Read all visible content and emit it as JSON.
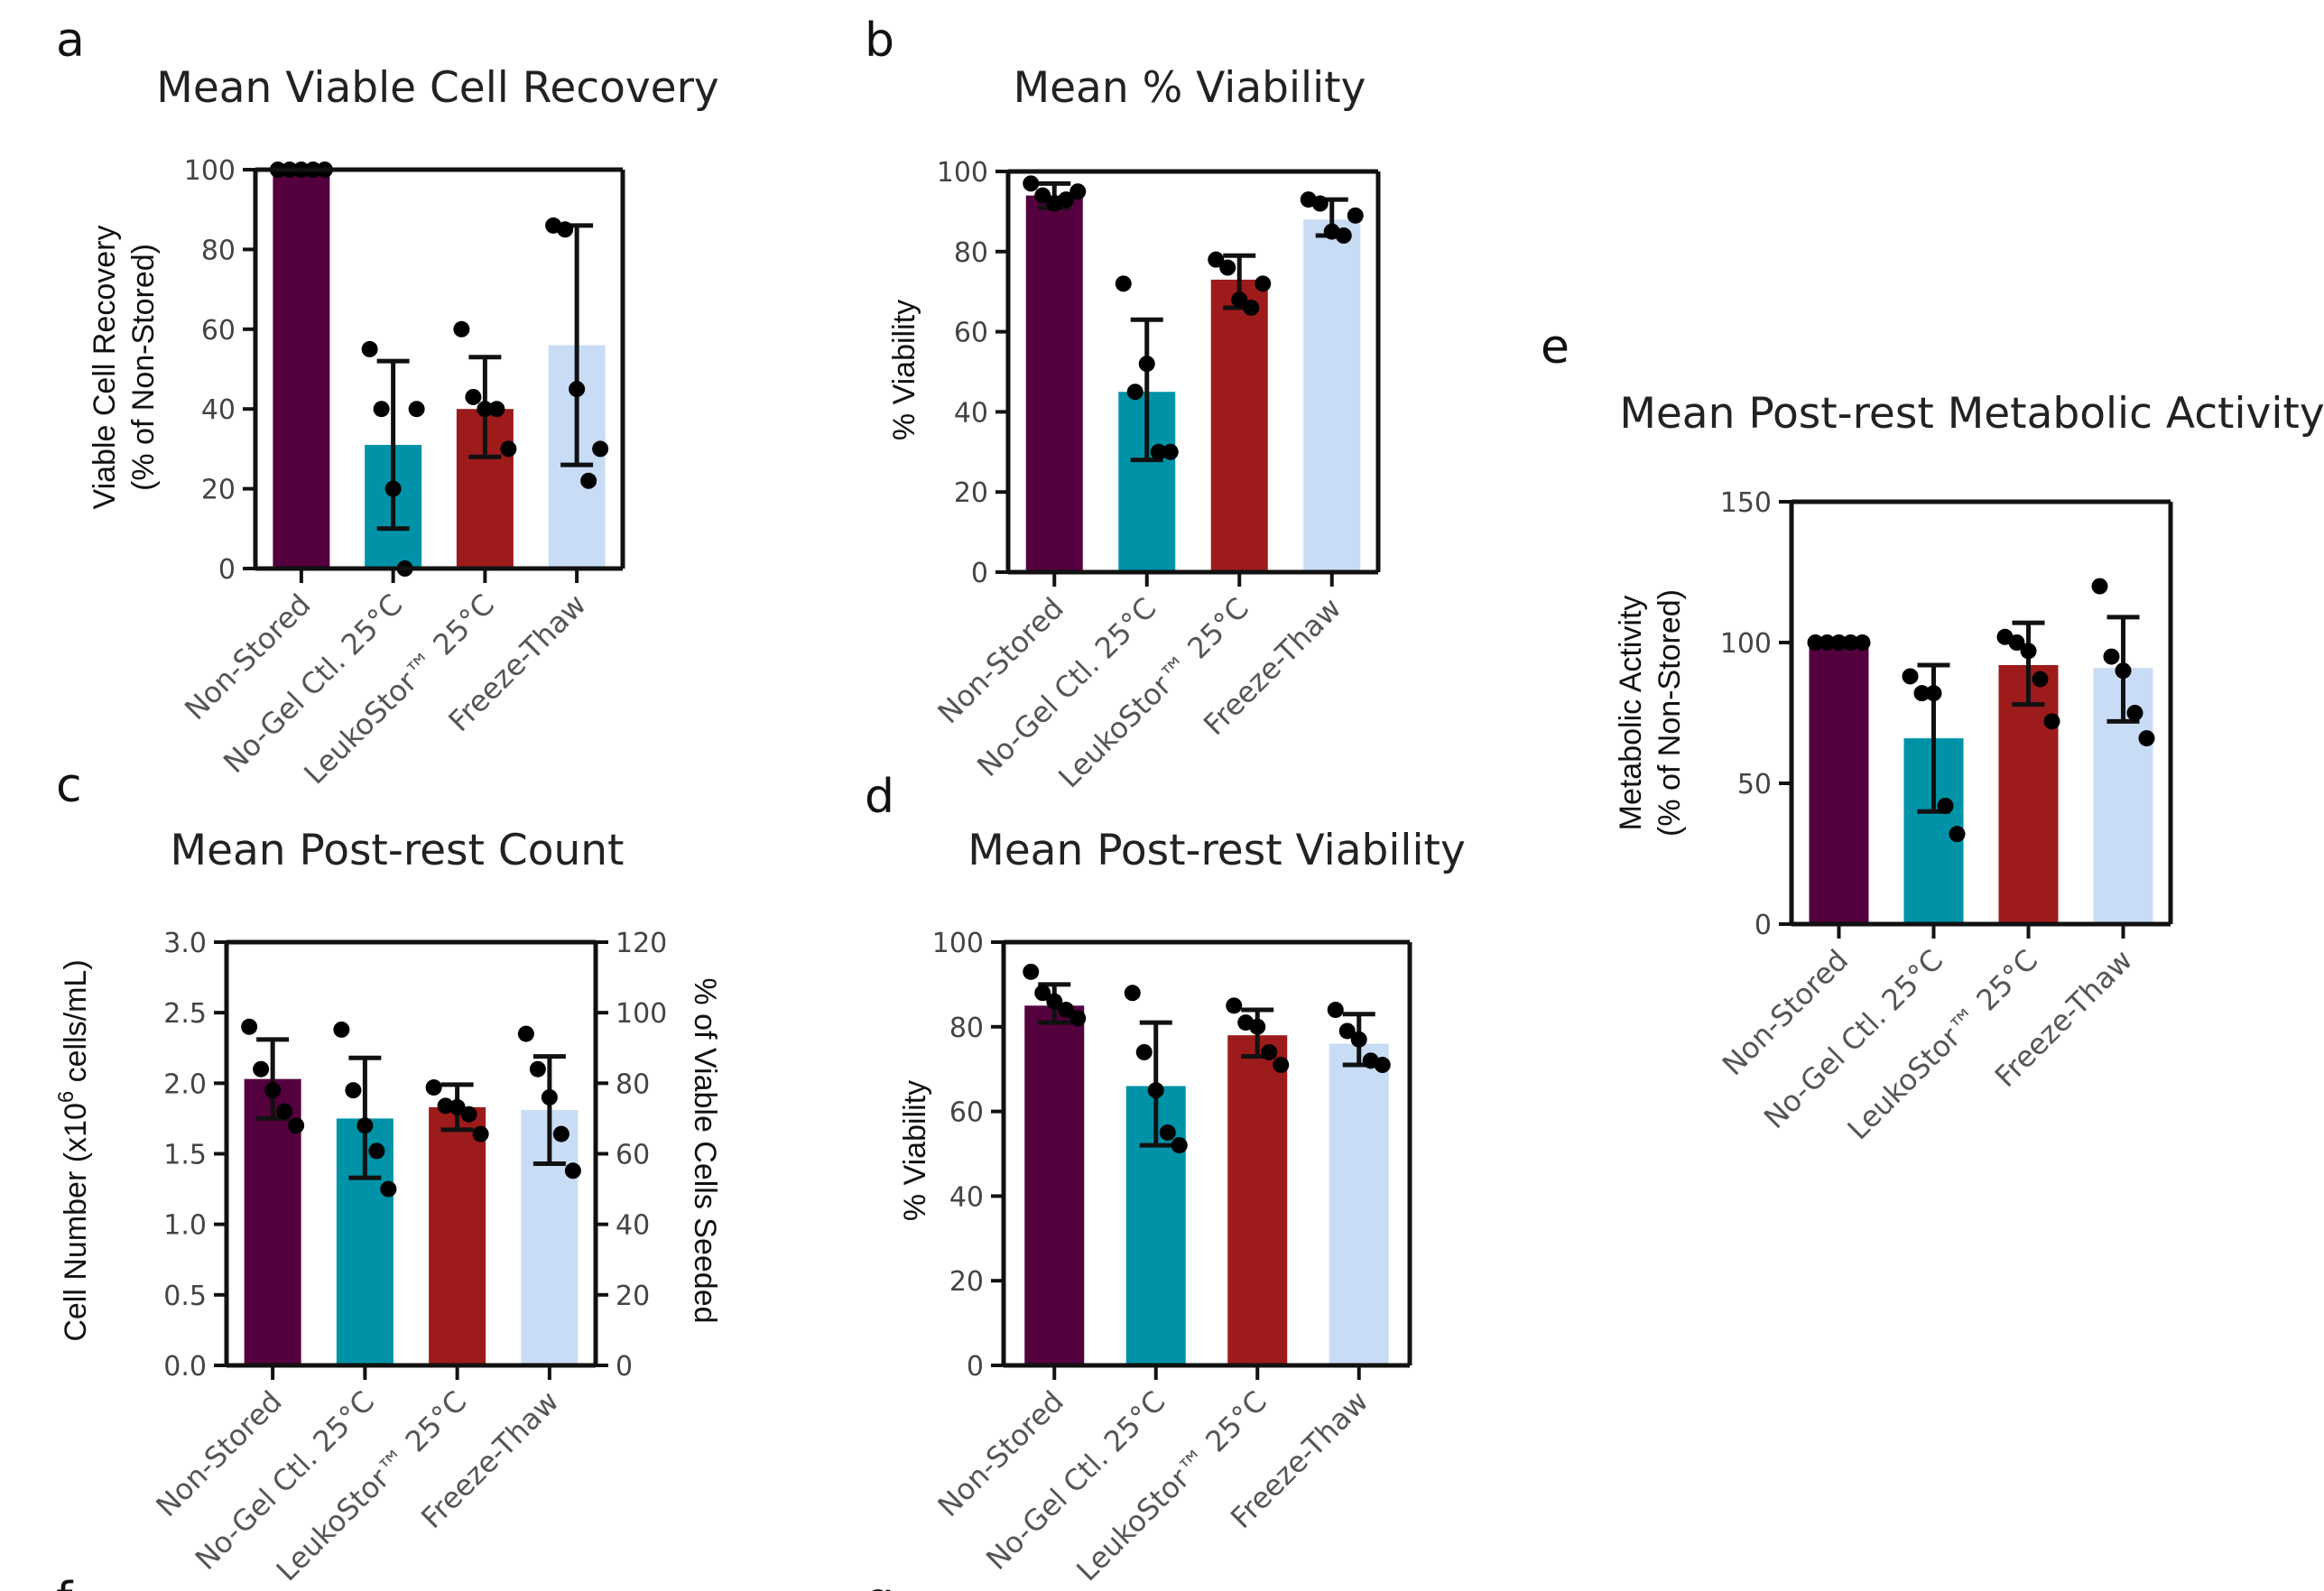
{
  "colors": {
    "non_stored": "#54003f",
    "no_gel": "#0093a8",
    "leukostor": "#9e1b1b",
    "freeze_thaw": "#c8dcf5"
  },
  "chart_data": [
    {
      "panel": "a",
      "type": "bar",
      "title": "Mean Viable Cell Recovery",
      "ylabel": [
        "Viable Cell Recovery",
        "(% of Non-Stored)"
      ],
      "ylim": [
        0,
        100
      ],
      "yticks": [
        0,
        20,
        40,
        60,
        80,
        100
      ],
      "categories": [
        "Non-Stored",
        "No-Gel Ctl. 25°C",
        "LeukoStor™ 25°C",
        "Freeze-Thaw"
      ],
      "values": [
        100,
        31,
        40,
        56
      ],
      "error": [
        [
          100,
          100
        ],
        [
          10,
          52
        ],
        [
          28,
          53
        ],
        [
          26,
          86
        ]
      ],
      "points": [
        [
          100,
          100,
          100,
          100,
          100
        ],
        [
          55,
          40,
          20,
          0,
          40
        ],
        [
          60,
          43,
          40,
          40,
          30
        ],
        [
          86,
          85,
          45,
          22,
          30
        ]
      ]
    },
    {
      "panel": "b",
      "type": "bar",
      "title": "Mean % Viability",
      "ylabel": [
        "% Viability"
      ],
      "ylim": [
        0,
        100
      ],
      "yticks": [
        0,
        20,
        40,
        60,
        80,
        100
      ],
      "categories": [
        "Non-Stored",
        "No-Gel Ctl. 25°C",
        "LeukoStor™ 25°C",
        "Freeze-Thaw"
      ],
      "values": [
        94,
        45,
        73,
        88
      ],
      "error": [
        [
          91,
          97
        ],
        [
          28,
          63
        ],
        [
          66,
          79
        ],
        [
          84,
          93
        ]
      ],
      "points": [
        [
          97,
          94,
          92,
          93,
          95
        ],
        [
          72,
          45,
          52,
          30,
          30
        ],
        [
          78,
          76,
          68,
          66,
          72
        ],
        [
          93,
          92,
          85,
          84,
          89
        ]
      ]
    },
    {
      "panel": "c",
      "type": "bar",
      "title": "Mean Post-rest Count",
      "ylabel": [
        "Cell Number (x10",
        "6",
        " cells/mL)"
      ],
      "y2label": "% of Viable Cells Seeded",
      "ylim": [
        0,
        3
      ],
      "yticks": [
        0.0,
        0.5,
        1.0,
        1.5,
        2.0,
        2.5,
        3.0
      ],
      "y2lim": [
        0,
        120
      ],
      "y2ticks": [
        0,
        20,
        40,
        60,
        80,
        100,
        120
      ],
      "categories": [
        "Non-Stored",
        "No-Gel Ctl. 25°C",
        "LeukoStor™ 25°C",
        "Freeze-Thaw"
      ],
      "values": [
        2.03,
        1.75,
        1.83,
        1.81
      ],
      "error": [
        [
          1.75,
          2.31
        ],
        [
          1.33,
          2.18
        ],
        [
          1.67,
          1.99
        ],
        [
          1.43,
          2.19
        ]
      ],
      "points": [
        [
          2.4,
          2.1,
          1.95,
          1.8,
          1.7
        ],
        [
          2.38,
          1.95,
          1.7,
          1.52,
          1.25
        ],
        [
          1.97,
          1.84,
          1.83,
          1.78,
          1.64
        ],
        [
          2.35,
          2.1,
          1.9,
          1.64,
          1.38
        ]
      ]
    },
    {
      "panel": "d",
      "type": "bar",
      "title": "Mean Post-rest Viability",
      "ylabel": [
        "% Viability"
      ],
      "ylim": [
        0,
        100
      ],
      "yticks": [
        0,
        20,
        40,
        60,
        80,
        100
      ],
      "categories": [
        "Non-Stored",
        "No-Gel Ctl. 25°C",
        "LeukoStor™ 25°C",
        "Freeze-Thaw"
      ],
      "values": [
        85,
        66,
        78,
        76
      ],
      "error": [
        [
          81,
          90
        ],
        [
          52,
          81
        ],
        [
          73,
          84
        ],
        [
          71,
          83
        ]
      ],
      "points": [
        [
          93,
          88,
          86,
          84,
          82
        ],
        [
          88,
          74,
          65,
          55,
          52
        ],
        [
          85,
          81,
          80,
          74,
          71
        ],
        [
          84,
          79,
          77,
          72,
          71
        ]
      ]
    },
    {
      "panel": "e",
      "type": "bar",
      "title": "Mean Post-rest Metabolic Activity",
      "ylabel": [
        "Metabolic Activity",
        "(% of Non-Stored)"
      ],
      "ylim": [
        0,
        150
      ],
      "yticks": [
        0,
        50,
        100,
        150
      ],
      "categories": [
        "Non-Stored",
        "No-Gel Ctl. 25°C",
        "LeukoStor™ 25°C",
        "Freeze-Thaw"
      ],
      "values": [
        100,
        66,
        92,
        91
      ],
      "error": [
        [
          100,
          100
        ],
        [
          40,
          92
        ],
        [
          78,
          107
        ],
        [
          72,
          109
        ]
      ],
      "points": [
        [
          100,
          100,
          100,
          100,
          100
        ],
        [
          88,
          82,
          82,
          42,
          32
        ],
        [
          102,
          100,
          97,
          87,
          72
        ],
        [
          120,
          95,
          90,
          75,
          66
        ]
      ]
    }
  ],
  "partial_panel_letters": [
    "f",
    "g"
  ]
}
